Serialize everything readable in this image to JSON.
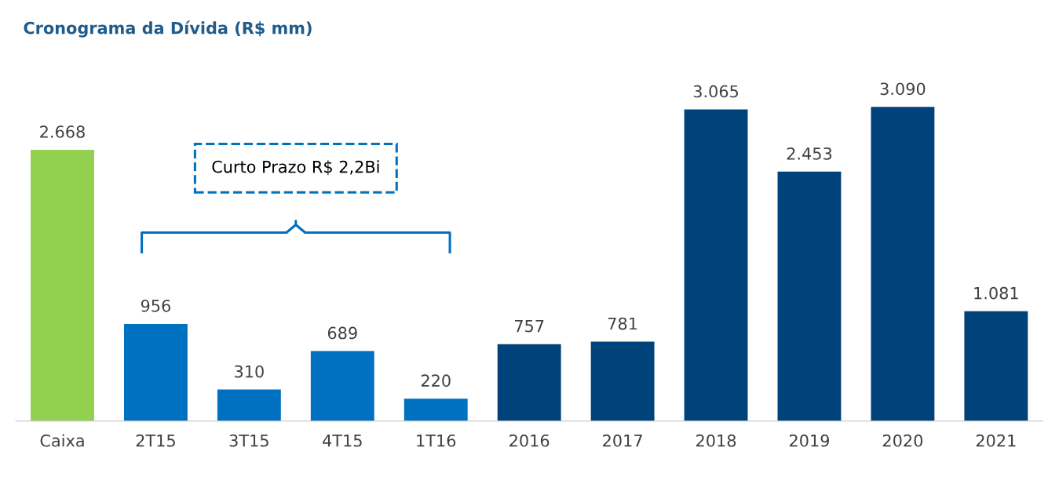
{
  "chart_data": {
    "type": "bar",
    "title": "Cronograma da Dívida (R$ mm)",
    "categories": [
      "Caixa",
      "2T15",
      "3T15",
      "4T15",
      "1T16",
      "2016",
      "2017",
      "2018",
      "2019",
      "2020",
      "2021"
    ],
    "values": [
      2668,
      956,
      310,
      689,
      220,
      757,
      781,
      3065,
      2453,
      3090,
      1081
    ],
    "colors": [
      "#92d050",
      "#0070c0",
      "#0070c0",
      "#0070c0",
      "#0070c0",
      "#00427a",
      "#00427a",
      "#00427a",
      "#00427a",
      "#00427a",
      "#00427a"
    ],
    "value_labels": [
      "2.668",
      "956",
      "310",
      "689",
      "220",
      "757",
      "781",
      "3.065",
      "2.453",
      "3.090",
      "1.081"
    ],
    "annotations": [
      "Curto Prazo R$ 2,2Bi"
    ],
    "grid": false,
    "legend": false
  }
}
